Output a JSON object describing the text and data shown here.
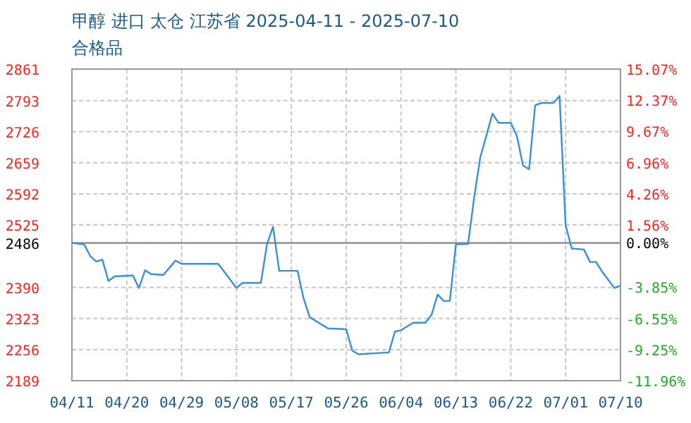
{
  "chart_data": {
    "type": "line",
    "title": "甲醇 进口 太仓 江苏省 2025-04-11 - 2025-07-10",
    "subtitle": "合格品",
    "x": [
      "2025-04-11",
      "2025-04-13",
      "2025-04-14",
      "2025-04-15",
      "2025-04-16",
      "2025-04-17",
      "2025-04-18",
      "2025-04-21",
      "2025-04-22",
      "2025-04-23",
      "2025-04-24",
      "2025-04-26",
      "2025-04-28",
      "2025-04-29",
      "2025-05-05",
      "2025-05-06",
      "2025-05-08",
      "2025-05-09",
      "2025-05-12",
      "2025-05-13",
      "2025-05-14",
      "2025-05-15",
      "2025-05-18",
      "2025-05-19",
      "2025-05-20",
      "2025-05-23",
      "2025-05-26",
      "2025-05-27",
      "2025-05-28",
      "2025-06-02",
      "2025-06-03",
      "2025-06-04",
      "2025-06-06",
      "2025-06-08",
      "2025-06-09",
      "2025-06-10",
      "2025-06-11",
      "2025-06-12",
      "2025-06-13",
      "2025-06-15",
      "2025-06-16",
      "2025-06-17",
      "2025-06-19",
      "2025-06-20",
      "2025-06-22",
      "2025-06-23",
      "2025-06-24",
      "2025-06-25",
      "2025-06-26",
      "2025-06-27",
      "2025-06-29",
      "2025-06-30",
      "2025-07-01",
      "2025-07-02",
      "2025-07-04",
      "2025-07-05",
      "2025-07-06",
      "2025-07-07",
      "2025-07-09",
      "2025-07-10"
    ],
    "series": [
      {
        "color": "#3a8fd9",
        "values": [
          2486,
          2483,
          2458,
          2446,
          2450,
          2404,
          2414,
          2416,
          2389,
          2427,
          2419,
          2417,
          2448,
          2441,
          2441,
          2424,
          2389,
          2400,
          2400,
          2483,
          2521,
          2426,
          2426,
          2367,
          2326,
          2302,
          2300,
          2254,
          2246,
          2250,
          2295,
          2298,
          2314,
          2314,
          2331,
          2375,
          2361,
          2361,
          2483,
          2484,
          2585,
          2671,
          2765,
          2745,
          2745,
          2717,
          2653,
          2645,
          2783,
          2788,
          2788,
          2803,
          2524,
          2474,
          2472,
          2445,
          2445,
          2424,
          2389,
          2394
        ]
      }
    ],
    "xlim": [
      "2025-04-11",
      "2025-07-10"
    ],
    "xticks": [
      {
        "value": "2025-04-11",
        "label": "04/11"
      },
      {
        "value": "2025-04-20",
        "label": "04/20"
      },
      {
        "value": "2025-04-29",
        "label": "04/29"
      },
      {
        "value": "2025-05-08",
        "label": "05/08"
      },
      {
        "value": "2025-05-17",
        "label": "05/17"
      },
      {
        "value": "2025-05-26",
        "label": "05/26"
      },
      {
        "value": "2025-06-04",
        "label": "06/04"
      },
      {
        "value": "2025-06-13",
        "label": "06/13"
      },
      {
        "value": "2025-06-22",
        "label": "06/22"
      },
      {
        "value": "2025-07-01",
        "label": "07/01"
      },
      {
        "value": "2025-07-10",
        "label": "07/10"
      }
    ],
    "ylim": [
      2189,
      2861
    ],
    "yticks": [
      2189,
      2256,
      2323,
      2390,
      2486,
      2525,
      2592,
      2659,
      2726,
      2793,
      2861
    ],
    "y2lim": [
      -11.96,
      15.07
    ],
    "y2ticks": [
      {
        "value": -11.96,
        "label": "-11.96%"
      },
      {
        "value": -9.25,
        "label": "-9.25%"
      },
      {
        "value": -6.55,
        "label": "-6.55%"
      },
      {
        "value": -3.85,
        "label": "-3.85%"
      },
      {
        "value": 0,
        "label": "0.00%"
      },
      {
        "value": 1.56,
        "label": "1.56%"
      },
      {
        "value": 4.26,
        "label": "4.26%"
      },
      {
        "value": 6.96,
        "label": "6.96%"
      },
      {
        "value": 9.67,
        "label": "9.67%"
      },
      {
        "value": 12.37,
        "label": "12.37%"
      },
      {
        "value": 15.07,
        "label": "15.07%"
      }
    ],
    "ref_lines": [
      {
        "axis": "y",
        "value": 2486,
        "color": "#888888"
      }
    ],
    "grid": true,
    "marker": "none",
    "line_style": "solid"
  }
}
